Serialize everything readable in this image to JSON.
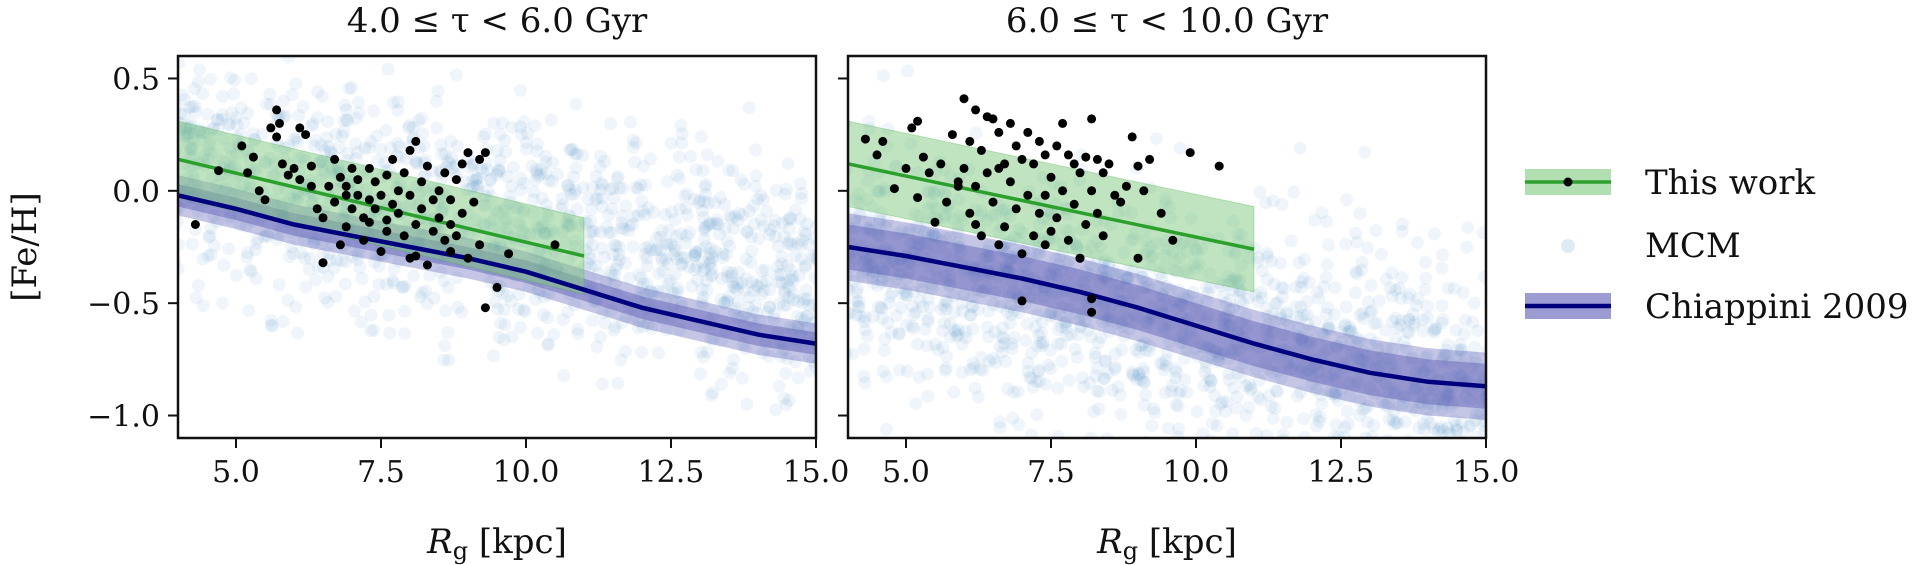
{
  "figure": {
    "ylabel": "[Fe/H]",
    "xlabel_main": "R",
    "xlabel_sub": "g",
    "xlabel_unit": "[kpc]"
  },
  "legend": {
    "items": [
      {
        "label": "This work",
        "color": "#2ca02c"
      },
      {
        "label": "MCM",
        "color": "#1f77b4"
      },
      {
        "label": "Chiappini 2009",
        "color": "#00008b"
      }
    ]
  },
  "colors": {
    "this_work_line": "#2ca02c",
    "this_work_band": "#7fc97f",
    "mcm_points": "#1f77b4",
    "chiappini_line": "#00007f",
    "chiappini_band": "#5a5ab4",
    "data_points": "#000000"
  },
  "chart_data": [
    {
      "type": "scatter",
      "title": "4.0 ≤ τ < 6.0 Gyr",
      "xlim": [
        4.0,
        15.0
      ],
      "ylim": [
        -1.1,
        0.6
      ],
      "xticks": [
        5.0,
        7.5,
        10.0,
        12.5,
        15.0
      ],
      "xtick_labels": [
        "5.0",
        "7.5",
        "10.0",
        "12.5",
        "15.0"
      ],
      "yticks": [
        0.5,
        0.0,
        -0.5,
        -1.0
      ],
      "ytick_labels": [
        "0.5",
        "0.0",
        "−0.5",
        "−1.0"
      ],
      "this_work": {
        "x": [
          4.0,
          11.0
        ],
        "y": [
          0.14,
          -0.29
        ],
        "band_halfwidth": 0.17
      },
      "chiappini": {
        "x": [
          4.0,
          5.0,
          6.0,
          7.0,
          8.0,
          9.0,
          10.0,
          11.0,
          12.0,
          13.0,
          14.0,
          15.0
        ],
        "y": [
          -0.02,
          -0.08,
          -0.15,
          -0.2,
          -0.25,
          -0.3,
          -0.36,
          -0.44,
          -0.52,
          -0.58,
          -0.64,
          -0.68
        ],
        "band_inner": 0.05,
        "band_outer": 0.09
      },
      "mcm": {
        "center": [
          0.14,
          -0.051
        ],
        "scatter": 0.26,
        "count": 1400,
        "seed": 11
      },
      "points": {
        "x": [
          4.3,
          4.7,
          5.1,
          5.2,
          5.3,
          5.4,
          5.5,
          5.6,
          5.7,
          5.7,
          5.75,
          5.8,
          5.9,
          6.0,
          6.1,
          6.1,
          6.2,
          6.3,
          6.3,
          6.5,
          6.5,
          6.6,
          6.7,
          6.7,
          6.8,
          6.8,
          6.9,
          6.9,
          7.0,
          7.0,
          7.1,
          7.1,
          7.2,
          7.2,
          7.3,
          7.3,
          7.4,
          7.4,
          7.5,
          7.5,
          7.6,
          7.6,
          7.7,
          7.7,
          7.8,
          7.8,
          7.9,
          7.9,
          8.0,
          8.0,
          8.1,
          8.1,
          8.2,
          8.2,
          8.3,
          8.3,
          8.4,
          8.4,
          8.5,
          8.5,
          8.6,
          8.6,
          8.7,
          8.7,
          8.8,
          8.8,
          8.9,
          8.9,
          9.0,
          9.0,
          9.1,
          9.2,
          9.2,
          9.3,
          9.3,
          9.5,
          9.7,
          10.5,
          6.9,
          7.6,
          8.1,
          8.7,
          6.4,
          7.3,
          8.0
        ],
        "y": [
          -0.15,
          0.09,
          0.2,
          0.08,
          0.15,
          0.0,
          -0.04,
          0.28,
          0.24,
          0.36,
          0.3,
          0.12,
          0.07,
          0.1,
          0.28,
          0.05,
          0.25,
          0.02,
          0.11,
          -0.32,
          -0.12,
          0.02,
          0.14,
          -0.05,
          -0.24,
          0.06,
          0.02,
          -0.16,
          0.1,
          -0.08,
          -0.02,
          0.05,
          -0.22,
          -0.12,
          -0.04,
          0.1,
          -0.08,
          0.04,
          -0.27,
          -0.02,
          0.07,
          -0.13,
          -0.06,
          0.14,
          0.0,
          -0.1,
          0.08,
          -0.2,
          0.18,
          -0.02,
          0.22,
          -0.15,
          0.04,
          -0.08,
          0.11,
          -0.33,
          -0.04,
          -0.18,
          0.0,
          -0.12,
          0.08,
          -0.22,
          -0.04,
          -0.15,
          -0.2,
          0.05,
          0.12,
          -0.1,
          0.17,
          -0.3,
          -0.05,
          0.14,
          -0.24,
          0.17,
          -0.52,
          -0.43,
          -0.28,
          -0.24,
          -0.02,
          -0.18,
          -0.29,
          -0.27,
          -0.08,
          -0.14,
          -0.3
        ]
      }
    },
    {
      "type": "scatter",
      "title": "6.0 ≤ τ < 10.0 Gyr",
      "xlim": [
        4.0,
        15.0
      ],
      "ylim": [
        -1.1,
        0.6
      ],
      "xticks": [
        5.0,
        7.5,
        10.0,
        12.5,
        15.0
      ],
      "xtick_labels": [
        "5.0",
        "7.5",
        "10.0",
        "12.5",
        "15.0"
      ],
      "yticks": [
        0.5,
        0.0,
        -0.5,
        -1.0
      ],
      "ytick_labels": [
        "",
        "",
        "",
        ""
      ],
      "this_work": {
        "x": [
          4.0,
          11.0
        ],
        "y": [
          0.12,
          -0.26
        ],
        "band_halfwidth": 0.19
      },
      "chiappini": {
        "x": [
          4.0,
          5.0,
          6.0,
          7.0,
          8.0,
          9.0,
          10.0,
          11.0,
          12.0,
          13.0,
          14.0,
          15.0
        ],
        "y": [
          -0.25,
          -0.29,
          -0.34,
          -0.39,
          -0.45,
          -0.52,
          -0.6,
          -0.68,
          -0.75,
          -0.81,
          -0.85,
          -0.87
        ],
        "band_inner": 0.1,
        "band_outer": 0.15
      },
      "mcm": {
        "center": [
          -0.25,
          -0.06
        ],
        "scatter": 0.28,
        "count": 1500,
        "seed": 23
      },
      "points": {
        "x": [
          4.3,
          4.5,
          4.6,
          4.8,
          5.0,
          5.1,
          5.2,
          5.2,
          5.3,
          5.4,
          5.5,
          5.6,
          5.7,
          5.8,
          5.9,
          6.0,
          6.0,
          6.1,
          6.1,
          6.2,
          6.2,
          6.3,
          6.3,
          6.4,
          6.4,
          6.5,
          6.5,
          6.6,
          6.6,
          6.7,
          6.7,
          6.8,
          6.8,
          6.9,
          6.9,
          7.0,
          7.0,
          7.1,
          7.1,
          7.2,
          7.2,
          7.3,
          7.3,
          7.4,
          7.4,
          7.5,
          7.5,
          7.6,
          7.6,
          7.7,
          7.7,
          7.8,
          7.8,
          7.9,
          7.9,
          8.0,
          8.0,
          8.1,
          8.1,
          8.2,
          8.2,
          8.3,
          8.3,
          8.4,
          8.4,
          8.5,
          8.6,
          8.7,
          8.8,
          8.9,
          9.0,
          9.0,
          9.1,
          9.2,
          9.4,
          9.6,
          9.9,
          10.4,
          6.2,
          7.0,
          8.2,
          8.2,
          5.9,
          6.6,
          7.4,
          8.0
        ],
        "y": [
          0.23,
          0.16,
          0.22,
          0.01,
          0.1,
          0.28,
          0.31,
          -0.03,
          0.15,
          0.08,
          -0.14,
          0.12,
          -0.05,
          0.25,
          0.04,
          0.41,
          0.1,
          0.22,
          -0.1,
          0.36,
          0.02,
          0.18,
          -0.2,
          0.33,
          0.08,
          0.32,
          -0.05,
          0.26,
          0.1,
          0.12,
          -0.16,
          0.3,
          0.04,
          0.2,
          -0.08,
          0.14,
          -0.28,
          0.26,
          -0.02,
          0.12,
          -0.2,
          0.22,
          -0.1,
          0.16,
          -0.02,
          0.06,
          -0.18,
          0.2,
          -0.12,
          0.3,
          0.0,
          0.16,
          -0.22,
          0.12,
          -0.06,
          0.08,
          -0.3,
          0.15,
          -0.15,
          0.32,
          0.0,
          0.14,
          -0.1,
          0.08,
          -0.2,
          0.12,
          -0.02,
          -0.05,
          0.02,
          0.24,
          0.11,
          -0.3,
          0.0,
          0.14,
          -0.1,
          -0.22,
          0.17,
          0.11,
          -0.15,
          -0.49,
          -0.48,
          -0.54,
          0.02,
          -0.24,
          -0.24,
          -0.3
        ]
      }
    }
  ]
}
